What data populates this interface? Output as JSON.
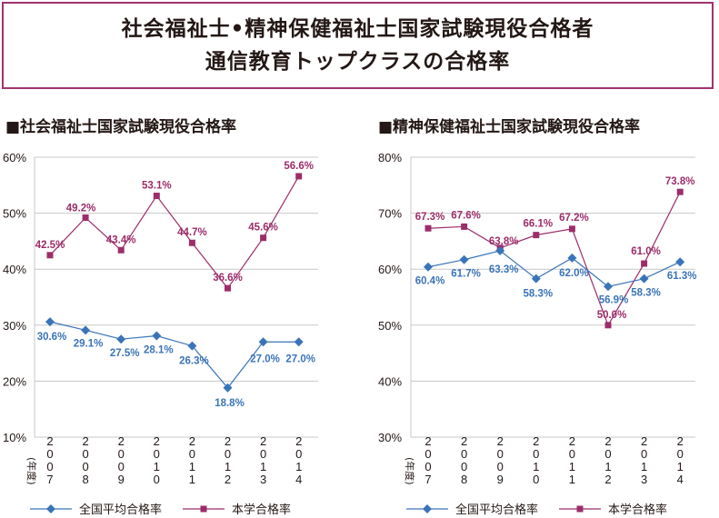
{
  "header": {
    "title_line1": "社会福祉士•精神保健福祉士国家試験現役合格者",
    "title_line2": "通信教育トップクラスの合格率"
  },
  "colors": {
    "school": "#9c2d6a",
    "national": "#3a74b8",
    "frame": "#a0336e",
    "grid": "#c8c8c8",
    "text": "#231815"
  },
  "legend": {
    "national_label": "全国平均合格率",
    "school_label": "本学合格率"
  },
  "chart_data": [
    {
      "type": "line",
      "title": "■社会福祉士国家試験現役合格率",
      "xlabel": "(年度)",
      "ylabel": "",
      "categories": [
        [
          "2",
          "0",
          "0",
          "7"
        ],
        [
          "2",
          "0",
          "0",
          "8"
        ],
        [
          "2",
          "0",
          "0",
          "9"
        ],
        [
          "2",
          "0",
          "1",
          "0"
        ],
        [
          "2",
          "0",
          "1",
          "1"
        ],
        [
          "2",
          "0",
          "1",
          "2"
        ],
        [
          "2",
          "0",
          "1",
          "3"
        ],
        [
          "2",
          "0",
          "1",
          "4"
        ]
      ],
      "ylim": [
        10,
        60
      ],
      "yticks": [
        10,
        20,
        30,
        40,
        50,
        60
      ],
      "ytick_labels": [
        "10%",
        "20%",
        "30%",
        "40%",
        "50%",
        "60%"
      ],
      "series": [
        {
          "name": "本学合格率",
          "key": "school",
          "marker": "square",
          "values": [
            42.5,
            49.2,
            43.4,
            53.1,
            44.7,
            36.6,
            45.6,
            56.6
          ],
          "labels": [
            "42.5%",
            "49.2%",
            "43.4%",
            "53.1%",
            "44.7%",
            "36.6%",
            "45.6%",
            "56.6%"
          ]
        },
        {
          "name": "全国平均合格率",
          "key": "national",
          "marker": "diamond",
          "values": [
            30.6,
            29.1,
            27.5,
            28.1,
            26.3,
            18.8,
            27.0,
            27.0
          ],
          "labels": [
            "30.6%",
            "29.1%",
            "27.5%",
            "28.1%",
            "26.3%",
            "18.8%",
            "27.0%",
            "27.0%"
          ]
        }
      ]
    },
    {
      "type": "line",
      "title": "■精神保健福祉士国家試験現役合格率",
      "xlabel": "(年度)",
      "ylabel": "",
      "categories": [
        [
          "2",
          "0",
          "0",
          "7"
        ],
        [
          "2",
          "0",
          "0",
          "8"
        ],
        [
          "2",
          "0",
          "0",
          "9"
        ],
        [
          "2",
          "0",
          "1",
          "0"
        ],
        [
          "2",
          "0",
          "1",
          "1"
        ],
        [
          "2",
          "0",
          "1",
          "2"
        ],
        [
          "2",
          "0",
          "1",
          "3"
        ],
        [
          "2",
          "0",
          "1",
          "4"
        ]
      ],
      "ylim": [
        30,
        80
      ],
      "yticks": [
        30,
        40,
        50,
        60,
        70,
        80
      ],
      "ytick_labels": [
        "30%",
        "40%",
        "50%",
        "60%",
        "70%",
        "80%"
      ],
      "series": [
        {
          "name": "本学合格率",
          "key": "school",
          "marker": "square",
          "values": [
            67.3,
            67.6,
            63.8,
            66.1,
            67.2,
            50.0,
            61.0,
            73.8
          ],
          "labels": [
            "67.3%",
            "67.6%",
            "63.8%",
            "66.1%",
            "67.2%",
            "50.0%",
            "61.0%",
            "73.8%"
          ]
        },
        {
          "name": "全国平均合格率",
          "key": "national",
          "marker": "diamond",
          "values": [
            60.4,
            61.7,
            63.3,
            58.3,
            62.0,
            56.9,
            58.3,
            61.3
          ],
          "labels": [
            "60.4%",
            "61.7%",
            "63.3%",
            "58.3%",
            "62.0%",
            "56.9%",
            "58.3%",
            "61.3%"
          ]
        }
      ]
    }
  ]
}
